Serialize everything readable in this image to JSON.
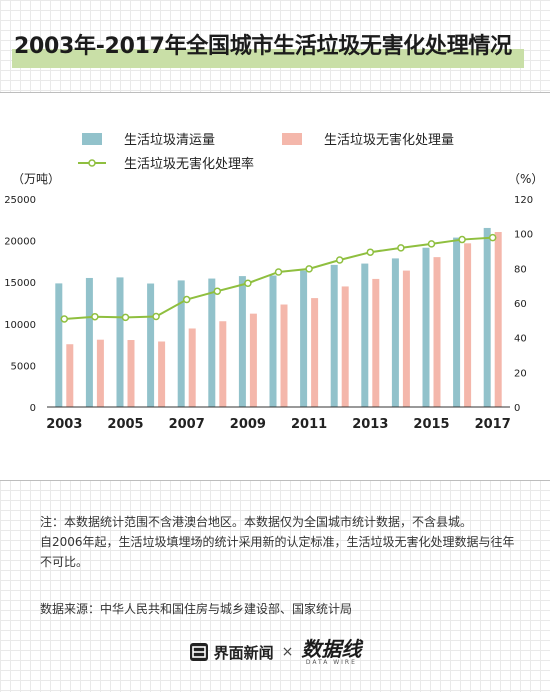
{
  "title": "2003年-2017年全国城市生活垃圾无害化处理情况",
  "chart_data": {
    "type": "bar",
    "categories": [
      "2003",
      "2004",
      "2005",
      "2006",
      "2007",
      "2008",
      "2009",
      "2010",
      "2011",
      "2012",
      "2013",
      "2014",
      "2015",
      "2016",
      "2017"
    ],
    "xtick_labels": [
      "2003",
      "2005",
      "2007",
      "2009",
      "2011",
      "2013",
      "2015",
      "2017"
    ],
    "series": [
      {
        "name": "生活垃圾清运量",
        "type": "bar",
        "axis": "left",
        "color": "#92c2cb",
        "values": [
          14857,
          15509,
          15577,
          14841,
          15215,
          15438,
          15734,
          15805,
          16395,
          17081,
          17239,
          17860,
          19142,
          20362,
          21521
        ]
      },
      {
        "name": "生活垃圾无害化处理量",
        "type": "bar",
        "axis": "left",
        "color": "#f4b7ab",
        "values": [
          7545,
          8089,
          8051,
          7873,
          9438,
          10307,
          11220,
          12318,
          13090,
          14490,
          15394,
          16394,
          18013,
          19674,
          21034
        ]
      },
      {
        "name": "生活垃圾无害化处理率",
        "type": "line",
        "axis": "right",
        "color": "#8fbf3f",
        "values": [
          50.8,
          52.1,
          51.7,
          52.2,
          62.0,
          66.8,
          71.4,
          77.9,
          79.7,
          84.8,
          89.3,
          91.8,
          94.1,
          96.6,
          97.7
        ]
      }
    ],
    "ylabel_left": "（万吨）",
    "ylabel_right": "（%）",
    "ylim_left": [
      0,
      25000
    ],
    "ylim_right": [
      0,
      120
    ],
    "yticks_left": [
      "0",
      "5000",
      "10000",
      "15000",
      "20000",
      "25000"
    ],
    "yticks_right": [
      "0",
      "20",
      "40",
      "60",
      "80",
      "100",
      "120"
    ],
    "grid": false,
    "legend_placement": "top-left"
  },
  "notes": {
    "line1": "注：本数据统计范围不含港澳台地区。本数据仅为全国城市统计数据，不含县城。",
    "line2": "自2006年起，生活垃圾填埋场的统计采用新的认定标准，生活垃圾无害化处理数据与往年不可比。"
  },
  "source": "数据来源：中华人民共和国住房与城乡建设部、国家统计局",
  "footer": {
    "brand": "界面新闻",
    "separator": "×",
    "partner": "数据线",
    "partner_sub": "DATA WIRE"
  }
}
